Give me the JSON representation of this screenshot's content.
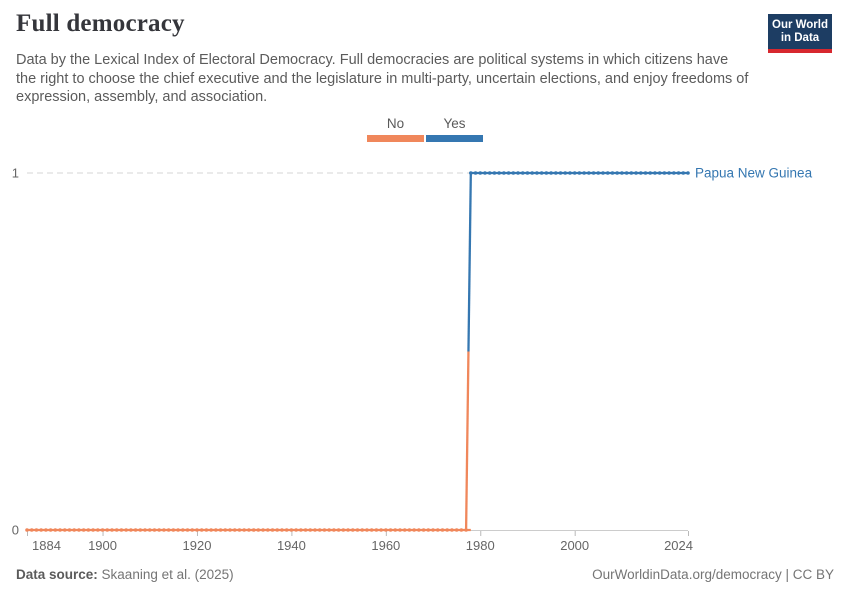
{
  "header": {
    "title": "Full democracy",
    "subtitle": "Data by the Lexical Index of Electoral Democracy. Full democracies are political systems in which citizens have the right to choose the chief executive and the legislature in multi-party, uncertain elections, and enjoy freedoms of expression, assembly, and association.",
    "logo": {
      "line1": "Our World",
      "line2": "in Data",
      "bg_color": "#1d3d63",
      "accent_color": "#d7282f"
    }
  },
  "legend": {
    "items": [
      {
        "label": "No",
        "color": "#F0875B"
      },
      {
        "label": "Yes",
        "color": "#3577B1"
      }
    ]
  },
  "chart_data": {
    "type": "line",
    "title": "Full democracy",
    "entity": "Papua New Guinea",
    "grid": "dashed horizontal gridline at y=1, solid axis at y=0",
    "legend_position": "top-center",
    "x_axis": {
      "min": 1884,
      "max": 2024,
      "ticks": [
        {
          "year": 1884,
          "label": "1884",
          "align": "start"
        },
        {
          "year": 1900,
          "label": "1900",
          "align": "middle"
        },
        {
          "year": 1920,
          "label": "1920",
          "align": "middle"
        },
        {
          "year": 1940,
          "label": "1940",
          "align": "middle"
        },
        {
          "year": 1960,
          "label": "1960",
          "align": "middle"
        },
        {
          "year": 1980,
          "label": "1980",
          "align": "middle"
        },
        {
          "year": 2000,
          "label": "2000",
          "align": "middle"
        },
        {
          "year": 2024,
          "label": "2024",
          "align": "end"
        }
      ]
    },
    "y_axis": {
      "range": [
        0,
        1
      ],
      "ticks": [
        {
          "value": 1,
          "label": "1",
          "gridline": "dashed"
        },
        {
          "value": 0,
          "label": "0",
          "gridline": "axis"
        }
      ]
    },
    "series": [
      {
        "name": "Papua New Guinea",
        "label_color": "#3577B1",
        "marker": "yearly dots",
        "segments": [
          {
            "from_year": 1884,
            "to_year": 1977,
            "value": 0,
            "status": "No",
            "color": "#F0875B"
          },
          {
            "from_year": 1978,
            "to_year": 2024,
            "value": 1,
            "status": "Yes",
            "color": "#3577B1"
          }
        ]
      }
    ],
    "colors": {
      "gridline": "#d6d6d6",
      "axis": "#cccccc",
      "tick": "#b9b9b9",
      "tick_text": "#666666"
    }
  },
  "footer": {
    "source_label": "Data source:",
    "source_value": "Skaaning et al. (2025)",
    "link": "OurWorldinData.org/democracy | CC BY"
  }
}
